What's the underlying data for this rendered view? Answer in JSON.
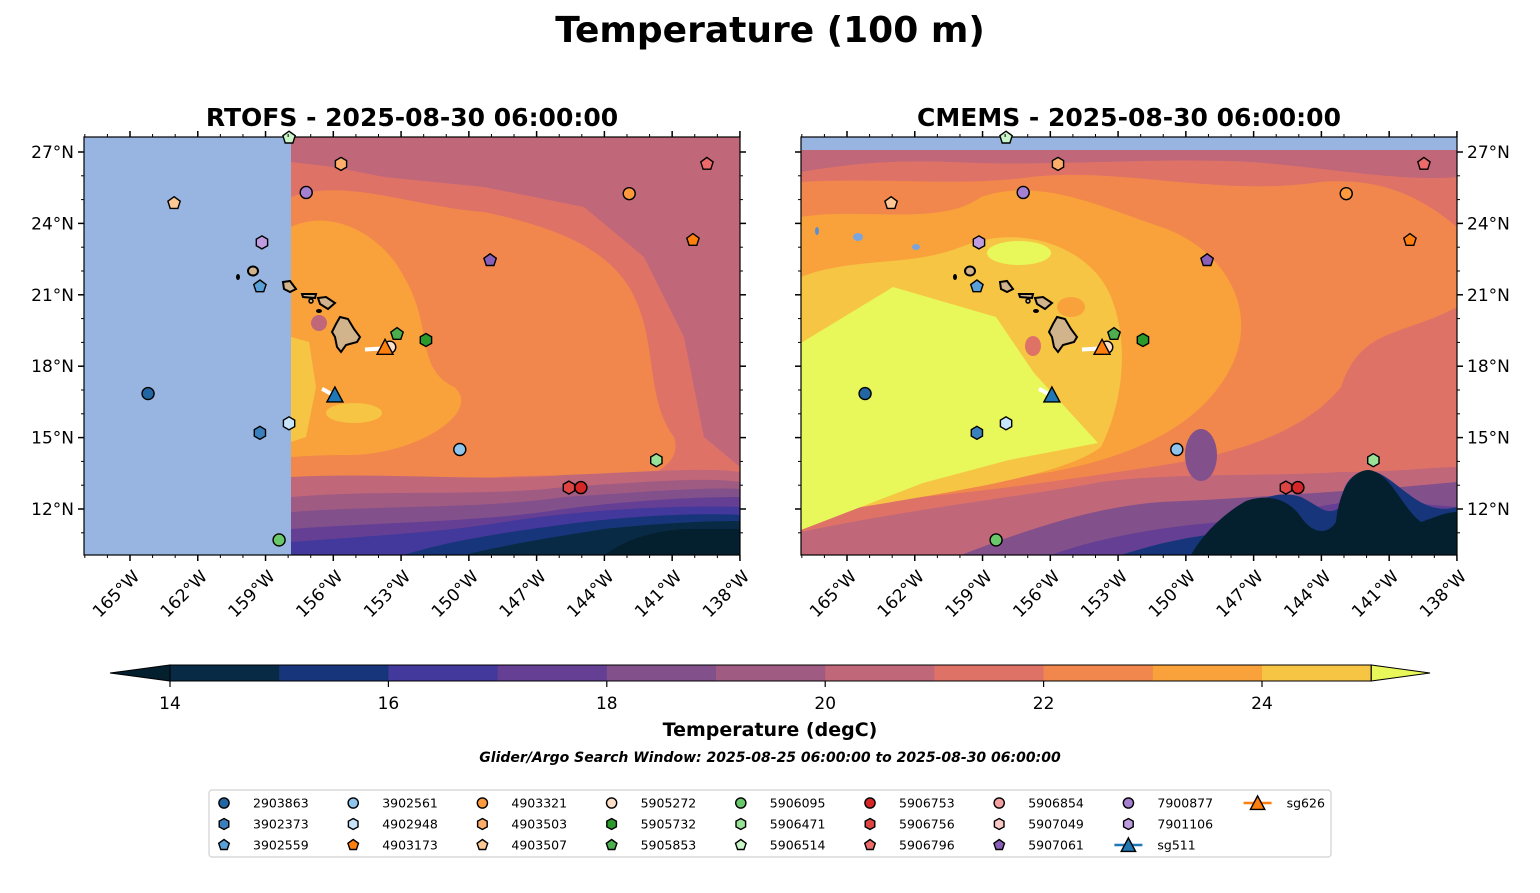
{
  "chart_data": {
    "type": "heatmap",
    "title": "Temperature (100 m)",
    "panels": [
      {
        "id": "rtofs",
        "title": "RTOFS - 2025-08-30 06:00:00"
      },
      {
        "id": "cmems",
        "title": "CMEMS - 2025-08-30 06:00:00"
      }
    ],
    "lon_ticks": [
      "165°W",
      "162°W",
      "159°W",
      "156°W",
      "153°W",
      "150°W",
      "147°W",
      "144°W",
      "141°W",
      "138°W"
    ],
    "lon_tick_values": [
      -165,
      -162,
      -159,
      -156,
      -153,
      -150,
      -147,
      -144,
      -141,
      -138
    ],
    "lat_ticks": [
      "27°N",
      "24°N",
      "21°N",
      "18°N",
      "15°N",
      "12°N"
    ],
    "lat_tick_values": [
      27,
      24,
      21,
      18,
      15,
      12
    ],
    "xlim": [
      -167.0,
      -138.0
    ],
    "ylim": [
      10.1,
      27.6
    ],
    "colorbar": {
      "label": "Temperature (degC)",
      "levels": [
        14,
        15,
        16,
        17,
        18,
        19,
        20,
        21,
        22,
        23,
        24,
        25
      ],
      "tick_labels": [
        "14",
        "16",
        "18",
        "20",
        "22",
        "24"
      ],
      "tick_values": [
        14,
        16,
        18,
        20,
        22,
        24
      ],
      "colors": [
        "#082a44",
        "#17357a",
        "#43389b",
        "#653f94",
        "#82508b",
        "#a05b83",
        "#c0677a",
        "#df7267",
        "#f1874c",
        "#f9a23c",
        "#f6c544"
      ],
      "under_color": "#04202f",
      "over_color": "#e8f75a",
      "extend": "both"
    },
    "subtitle": "Glider/Argo Search Window: 2025-08-25 06:00:00 to 2025-08-30 06:00:00",
    "land_color": "#d2b48c",
    "nodata_color": "#97b5e0",
    "floats": [
      {
        "id": "2903863",
        "color": "#2267a3",
        "lon": -164.2,
        "lat": 16.85
      },
      {
        "id": "3902373",
        "color": "#3a80bd",
        "lon": -159.25,
        "lat": 15.2
      },
      {
        "id": "3902559",
        "color": "#5aa0d8",
        "lon": -159.25,
        "lat": 21.35
      },
      {
        "id": "3902561",
        "color": "#8fc4ec",
        "lon": -150.4,
        "lat": 14.5
      },
      {
        "id": "4902948",
        "color": "#c6e4fa",
        "lon": -157.96,
        "lat": 15.6
      },
      {
        "id": "4903173",
        "color": "#ff7f0e",
        "lon": -140.08,
        "lat": 23.3
      },
      {
        "id": "4903321",
        "color": "#fd9a3e",
        "lon": -142.9,
        "lat": 25.25
      },
      {
        "id": "4903503",
        "color": "#fdae6b",
        "lon": -155.66,
        "lat": 26.5
      },
      {
        "id": "4903507",
        "color": "#fdc796",
        "lon": -163.05,
        "lat": 24.85
      },
      {
        "id": "5905272",
        "color": "#fde0c7",
        "lon": -153.5,
        "lat": 18.8
      },
      {
        "id": "5905732",
        "color": "#2a9a2a",
        "lon": -151.9,
        "lat": 19.1
      },
      {
        "id": "5905853",
        "color": "#4cae4c",
        "lon": -153.18,
        "lat": 19.35
      },
      {
        "id": "5906095",
        "color": "#69c869",
        "lon": -158.4,
        "lat": 10.7
      },
      {
        "id": "5906471",
        "color": "#98e298",
        "lon": -141.7,
        "lat": 14.05
      },
      {
        "id": "5906514",
        "color": "#c9f5c9",
        "lon": -157.96,
        "lat": 27.6
      },
      {
        "id": "5906753",
        "color": "#d62728",
        "lon": -145.04,
        "lat": 12.9
      },
      {
        "id": "5906756",
        "color": "#dd4444",
        "lon": -145.57,
        "lat": 12.9
      },
      {
        "id": "5906796",
        "color": "#ec6a6a",
        "lon": -139.46,
        "lat": 26.5
      },
      {
        "id": "5906854",
        "color": "#f4a0a0",
        "lon": null,
        "lat": null
      },
      {
        "id": "5907049",
        "color": "#fbc8c8",
        "lon": null,
        "lat": null
      },
      {
        "id": "5907061",
        "color": "#8a5fba",
        "lon": -149.06,
        "lat": 22.45
      },
      {
        "id": "7900877",
        "color": "#a57fd0",
        "lon": -157.2,
        "lat": 25.3
      },
      {
        "id": "7901106",
        "color": "#bf9ce0",
        "lon": -159.16,
        "lat": 23.2
      }
    ],
    "gliders": [
      {
        "id": "sg511",
        "color": "#1f77b4",
        "lon": -155.93,
        "lat": 16.75,
        "track": [
          [
            -156.5,
            17.05
          ],
          [
            -155.93,
            16.75
          ]
        ]
      },
      {
        "id": "sg626",
        "color": "#ff7f0e",
        "lon": -153.71,
        "lat": 18.75,
        "track": [
          [
            -154.6,
            18.7
          ],
          [
            -153.71,
            18.75
          ]
        ]
      }
    ]
  }
}
